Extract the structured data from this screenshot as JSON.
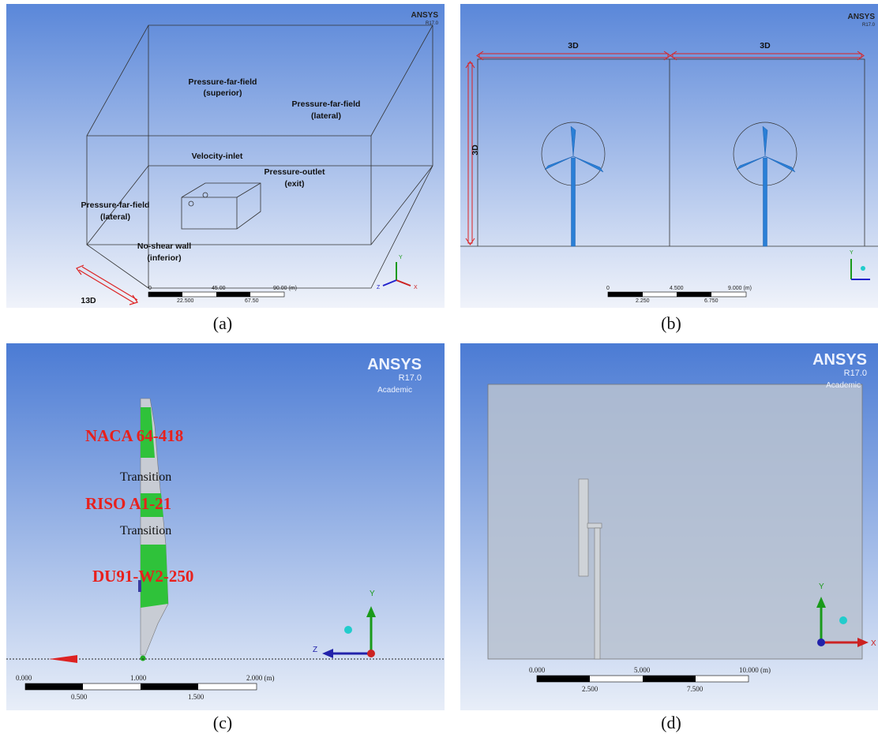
{
  "panels": [
    {
      "label": "(a)",
      "logo": {
        "name": "ANSYS",
        "version": "R17.0"
      },
      "labels": [
        [
          "Pressure-far-field",
          "(superior)"
        ],
        [
          "Pressure-far-field",
          "(lateral)"
        ],
        [
          "Velocity-inlet"
        ],
        [
          "Pressure-outlet",
          "(exit)"
        ],
        [
          "Pressure-far-field",
          "(lateral)"
        ],
        [
          "No-shear wall",
          "(inferior)"
        ]
      ],
      "dimensions": [
        "13D"
      ],
      "scale": {
        "major": [
          "0",
          "45.00",
          "90.00 (m)"
        ],
        "minor": [
          "22.500",
          "67.50"
        ]
      },
      "axes": [
        "Y",
        "X",
        "Z"
      ]
    },
    {
      "label": "(b)",
      "logo": {
        "name": "ANSYS",
        "version": "R17.0"
      },
      "dimensions": [
        "3D",
        "3D",
        "3D"
      ],
      "scale": {
        "major": [
          "0",
          "4.500",
          "9.000 (m)"
        ],
        "minor": [
          "2.250",
          "6.750"
        ]
      },
      "axes": [
        "Y"
      ]
    },
    {
      "label": "(c)",
      "logo": {
        "name": "ANSYS",
        "version": "R17.0",
        "edition": "Academic"
      },
      "profiles": [
        "NACA 64-418",
        "Transition",
        "RISO A1-21",
        "Transition",
        "DU91-W2-250"
      ],
      "scale": {
        "major": [
          "0.000",
          "1.000",
          "2.000 (m)"
        ],
        "minor": [
          "0.500",
          "1.500"
        ]
      },
      "axes": [
        "Y",
        "Z"
      ]
    },
    {
      "label": "(d)",
      "logo": {
        "name": "ANSYS",
        "version": "R17.0",
        "edition": "Academic"
      },
      "scale": {
        "major": [
          "0.000",
          "5.000",
          "10.000 (m)"
        ],
        "minor": [
          "2.500",
          "7.500"
        ]
      },
      "axes": [
        "Y",
        "X"
      ]
    }
  ]
}
